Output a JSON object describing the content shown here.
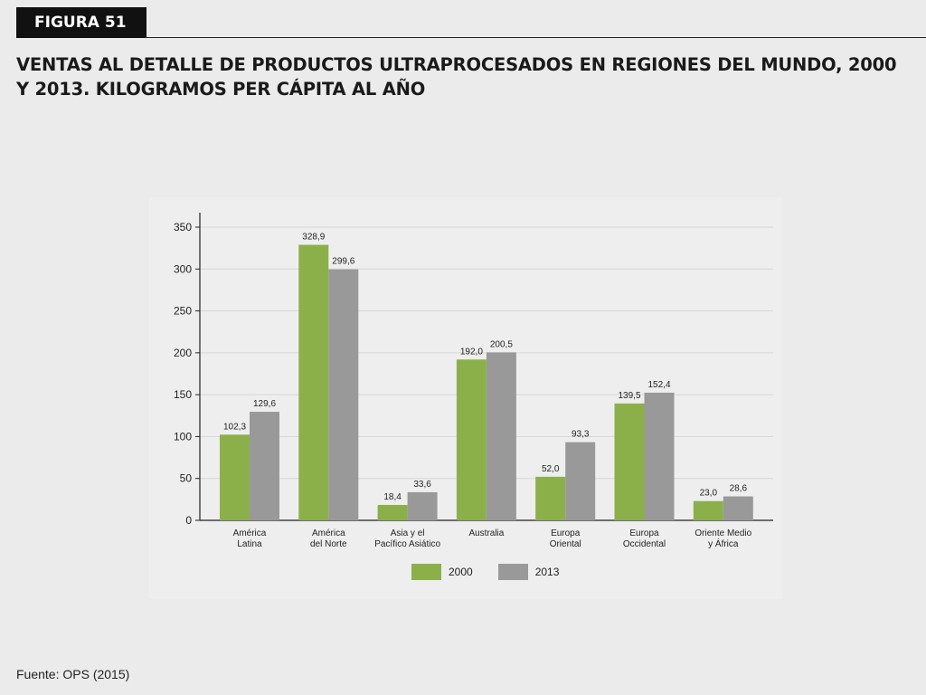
{
  "figure_label": "FIGURA 51",
  "title_line1": "VENTAS AL DETALLE DE PRODUCTOS ULTRAPROCESADOS EN REGIONES DEL MUNDO, 2000",
  "title_line2": "Y 2013. KILOGRAMOS PER CÁPITA AL AÑO",
  "source": "Fuente: OPS (2015)",
  "colors": {
    "series_2000": "#8bb04a",
    "series_2013": "#999999",
    "grid": "#d6d6d6",
    "axis": "#222222"
  },
  "chart_data": {
    "type": "bar",
    "title": "VENTAS AL DETALLE DE PRODUCTOS ULTRAPROCESADOS EN REGIONES DEL MUNDO, 2000 Y 2013. KILOGRAMOS PER CÁPITA AL AÑO",
    "xlabel": "",
    "ylabel": "",
    "ylim": [
      0,
      350
    ],
    "yticks": [
      0,
      50,
      100,
      150,
      200,
      250,
      300,
      350
    ],
    "grid": true,
    "legend_position": "bottom",
    "categories": [
      [
        "América",
        "Latina"
      ],
      [
        "América",
        "del Norte"
      ],
      [
        "Asia y el",
        "Pacífico Asiático"
      ],
      [
        "Australia"
      ],
      [
        "Europa",
        "Oriental"
      ],
      [
        "Europa",
        "Occidental"
      ],
      [
        "Oriente Medio",
        "y África"
      ]
    ],
    "series": [
      {
        "name": "2000",
        "values": [
          102.3,
          328.9,
          18.4,
          192.0,
          52.0,
          139.5,
          23.0
        ],
        "labels": [
          "102,3",
          "328,9",
          "18,4",
          "192,0",
          "52,0",
          "139,5",
          "23,0"
        ]
      },
      {
        "name": "2013",
        "values": [
          129.6,
          299.6,
          33.6,
          200.5,
          93.3,
          152.4,
          28.6
        ],
        "labels": [
          "129,6",
          "299,6",
          "33,6",
          "200,5",
          "93,3",
          "152,4",
          "28,6"
        ]
      }
    ]
  }
}
